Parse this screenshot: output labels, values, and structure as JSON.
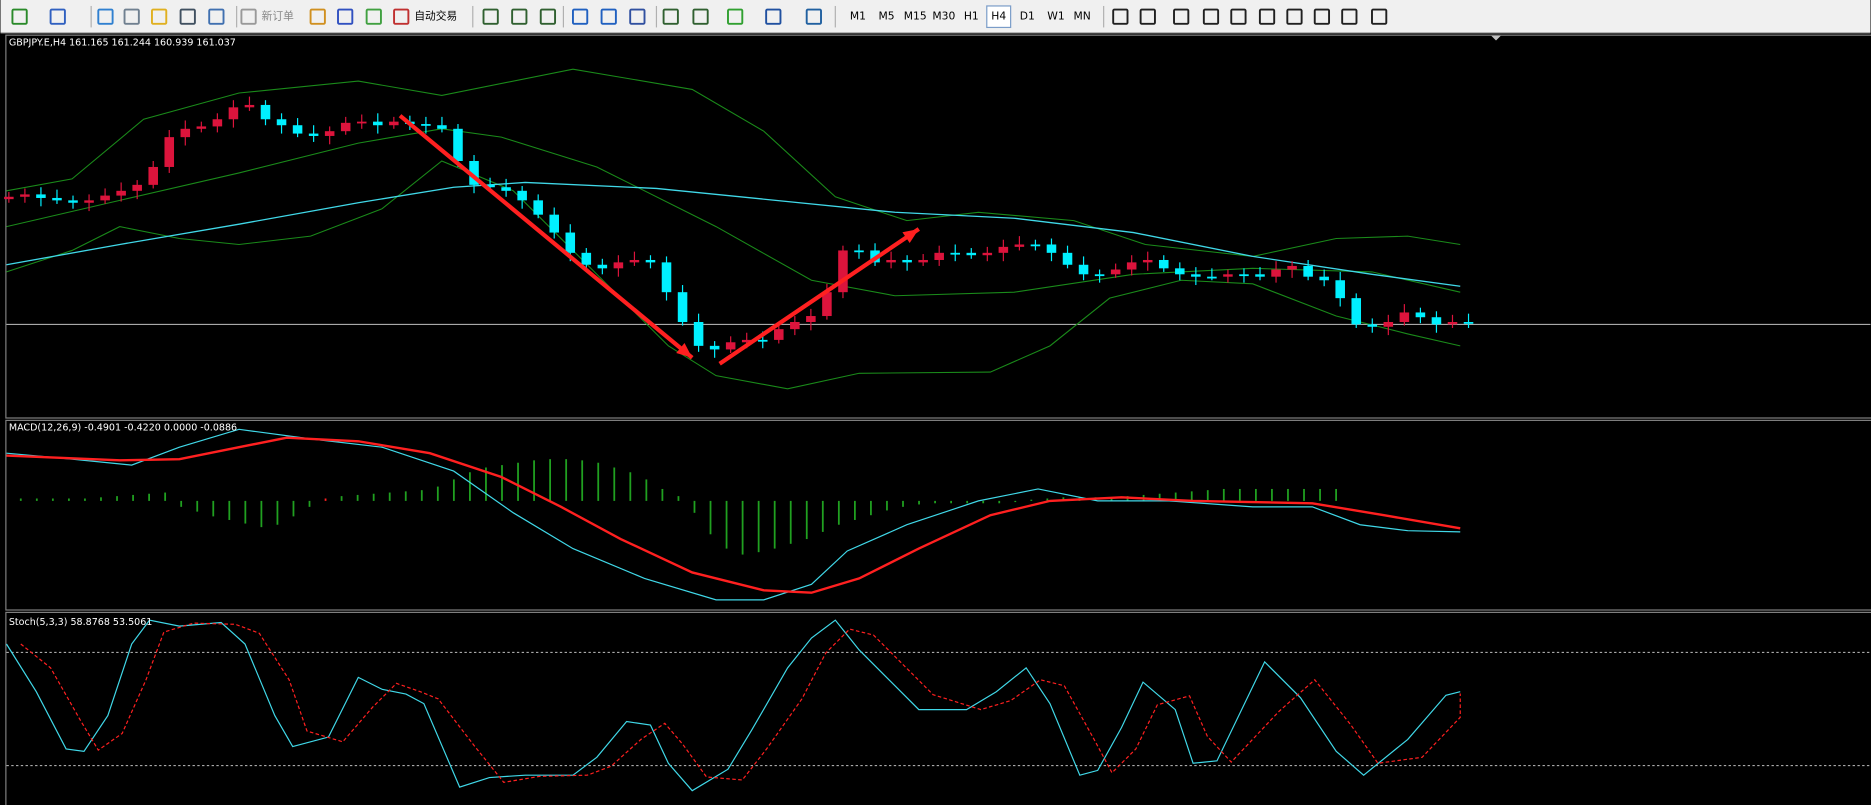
{
  "toolbar": {
    "buttons": [
      "新订单",
      "自动交易"
    ],
    "timeframes": [
      "M1",
      "M5",
      "M15",
      "M30",
      "H1",
      "H4",
      "D1",
      "W1",
      "MN"
    ],
    "selected": "H4"
  },
  "panels": {
    "main_label": "GBPJPY.E,H4  161.165 161.244 160.939 161.037",
    "macd_label": "MACD(12,26,9) -0.4901 -0.4220 0.0000 -0.0886",
    "stoch_label": "Stoch(5,3,3) 58.8768 53.5061"
  }
}
